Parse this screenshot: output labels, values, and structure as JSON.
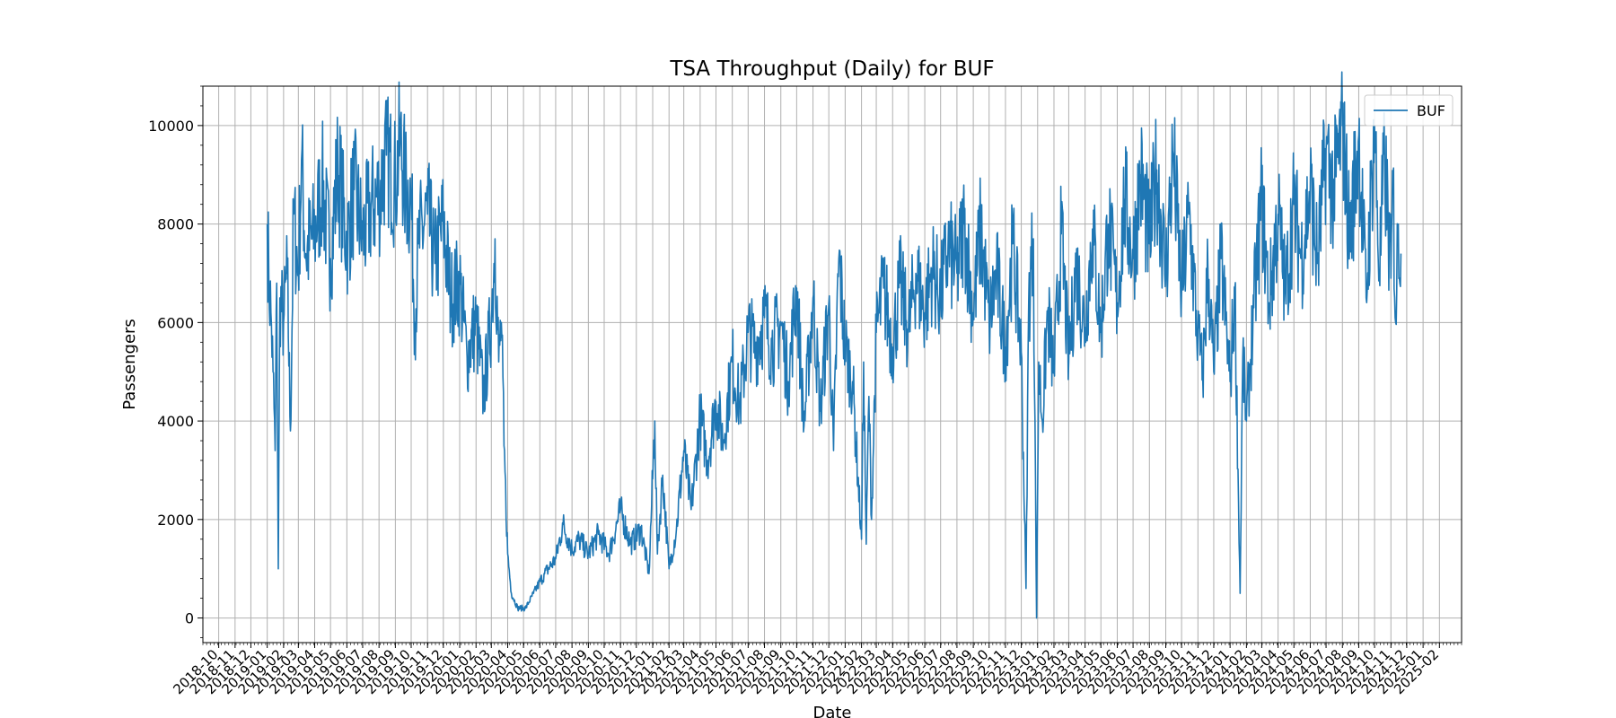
{
  "chart_data": {
    "type": "line",
    "title": "TSA Throughput (Daily) for BUF",
    "xlabel": "Date",
    "ylabel": "Passengers",
    "xlim": [
      "2018-09-01",
      "2025-03-15"
    ],
    "ylim": [
      -500,
      10800
    ],
    "yticks": [
      0,
      2000,
      4000,
      6000,
      8000,
      10000
    ],
    "xticks": [
      "2018-10",
      "2018-11",
      "2018-12",
      "2019-01",
      "2019-02",
      "2019-03",
      "2019-04",
      "2019-05",
      "2019-06",
      "2019-07",
      "2019-08",
      "2019-09",
      "2019-10",
      "2019-11",
      "2019-12",
      "2020-01",
      "2020-02",
      "2020-03",
      "2020-04",
      "2020-05",
      "2020-06",
      "2020-07",
      "2020-08",
      "2020-09",
      "2020-10",
      "2020-11",
      "2020-12",
      "2021-01",
      "2021-02",
      "2021-03",
      "2021-04",
      "2021-05",
      "2021-06",
      "2021-07",
      "2021-08",
      "2021-09",
      "2021-10",
      "2021-11",
      "2021-12",
      "2022-01",
      "2022-02",
      "2022-03",
      "2022-04",
      "2022-05",
      "2022-06",
      "2022-07",
      "2022-08",
      "2022-09",
      "2022-10",
      "2022-11",
      "2022-12",
      "2023-01",
      "2023-02",
      "2023-03",
      "2023-04",
      "2023-05",
      "2023-06",
      "2023-07",
      "2023-08",
      "2023-09",
      "2023-10",
      "2023-11",
      "2023-12",
      "2024-01",
      "2024-02",
      "2024-03",
      "2024-04",
      "2024-05",
      "2024-06",
      "2024-07",
      "2024-08",
      "2024-09",
      "2024-10",
      "2024-11",
      "2024-12",
      "2025-01",
      "2025-02"
    ],
    "grid": true,
    "legend_position": "top-right",
    "series": [
      {
        "name": "BUF",
        "color": "#1f77b4",
        "points": [
          [
            "2019-01-01",
            8000
          ],
          [
            "2019-01-04",
            6900
          ],
          [
            "2019-01-08",
            6200
          ],
          [
            "2019-01-12",
            5000
          ],
          [
            "2019-01-16",
            3400
          ],
          [
            "2019-01-19",
            6800
          ],
          [
            "2019-01-22",
            1000
          ],
          [
            "2019-01-25",
            6500
          ],
          [
            "2019-02-01",
            6000
          ],
          [
            "2019-02-08",
            7000
          ],
          [
            "2019-02-14",
            3800
          ],
          [
            "2019-02-20",
            8200
          ],
          [
            "2019-03-01",
            7000
          ],
          [
            "2019-03-07",
            9300
          ],
          [
            "2019-03-15",
            7400
          ],
          [
            "2019-04-01",
            7800
          ],
          [
            "2019-04-15",
            8800
          ],
          [
            "2019-05-01",
            7300
          ],
          [
            "2019-05-15",
            9200
          ],
          [
            "2019-06-01",
            7600
          ],
          [
            "2019-06-15",
            8700
          ],
          [
            "2019-07-01",
            7700
          ],
          [
            "2019-07-15",
            8300
          ],
          [
            "2019-08-01",
            8600
          ],
          [
            "2019-08-15",
            9400
          ],
          [
            "2019-09-01",
            8800
          ],
          [
            "2019-09-10",
            9700
          ],
          [
            "2019-09-20",
            8700
          ],
          [
            "2019-10-01",
            8500
          ],
          [
            "2019-10-08",
            6000
          ],
          [
            "2019-10-15",
            7600
          ],
          [
            "2019-11-01",
            8200
          ],
          [
            "2019-11-15",
            7200
          ],
          [
            "2019-12-01",
            8000
          ],
          [
            "2019-12-15",
            6500
          ],
          [
            "2020-01-01",
            6800
          ],
          [
            "2020-01-15",
            5300
          ],
          [
            "2020-02-01",
            6000
          ],
          [
            "2020-02-15",
            4500
          ],
          [
            "2020-03-01",
            6100
          ],
          [
            "2020-03-08",
            7700
          ],
          [
            "2020-03-15",
            5200
          ],
          [
            "2020-03-20",
            6000
          ],
          [
            "2020-03-25",
            3500
          ],
          [
            "2020-04-01",
            1300
          ],
          [
            "2020-04-08",
            500
          ],
          [
            "2020-04-20",
            200
          ],
          [
            "2020-05-05",
            200
          ],
          [
            "2020-05-20",
            500
          ],
          [
            "2020-06-10",
            900
          ],
          [
            "2020-07-01",
            1200
          ],
          [
            "2020-07-15",
            1900
          ],
          [
            "2020-08-01",
            1400
          ],
          [
            "2020-08-15",
            1600
          ],
          [
            "2020-09-01",
            1300
          ],
          [
            "2020-09-20",
            1700
          ],
          [
            "2020-10-10",
            1300
          ],
          [
            "2020-11-01",
            2200
          ],
          [
            "2020-11-20",
            1500
          ],
          [
            "2020-12-10",
            1800
          ],
          [
            "2020-12-25",
            900
          ],
          [
            "2021-01-05",
            4000
          ],
          [
            "2021-01-10",
            1300
          ],
          [
            "2021-01-20",
            2900
          ],
          [
            "2021-02-01",
            1000
          ],
          [
            "2021-02-15",
            1800
          ],
          [
            "2021-03-01",
            3400
          ],
          [
            "2021-03-15",
            2200
          ],
          [
            "2021-04-01",
            4100
          ],
          [
            "2021-04-15",
            3200
          ],
          [
            "2021-05-01",
            4400
          ],
          [
            "2021-05-15",
            3600
          ],
          [
            "2021-06-01",
            5200
          ],
          [
            "2021-06-15",
            4300
          ],
          [
            "2021-07-01",
            5800
          ],
          [
            "2021-07-15",
            5500
          ],
          [
            "2021-08-01",
            6100
          ],
          [
            "2021-08-15",
            5500
          ],
          [
            "2021-09-01",
            6000
          ],
          [
            "2021-09-15",
            4800
          ],
          [
            "2021-10-01",
            6700
          ],
          [
            "2021-10-15",
            3900
          ],
          [
            "2021-11-01",
            6500
          ],
          [
            "2021-11-15",
            4200
          ],
          [
            "2021-12-01",
            6400
          ],
          [
            "2021-12-10",
            3400
          ],
          [
            "2021-12-20",
            7300
          ],
          [
            "2022-01-01",
            5500
          ],
          [
            "2022-01-15",
            4800
          ],
          [
            "2022-02-01",
            1600
          ],
          [
            "2022-02-05",
            5200
          ],
          [
            "2022-02-10",
            1500
          ],
          [
            "2022-02-15",
            4500
          ],
          [
            "2022-02-20",
            2000
          ],
          [
            "2022-03-01",
            5800
          ],
          [
            "2022-03-15",
            6700
          ],
          [
            "2022-04-01",
            5500
          ],
          [
            "2022-04-15",
            6800
          ],
          [
            "2022-05-01",
            5800
          ],
          [
            "2022-05-15",
            7000
          ],
          [
            "2022-06-01",
            6200
          ],
          [
            "2022-06-15",
            7100
          ],
          [
            "2022-07-01",
            6500
          ],
          [
            "2022-07-15",
            7500
          ],
          [
            "2022-08-01",
            7000
          ],
          [
            "2022-08-15",
            8000
          ],
          [
            "2022-09-01",
            6200
          ],
          [
            "2022-09-15",
            7900
          ],
          [
            "2022-10-01",
            6000
          ],
          [
            "2022-10-15",
            7000
          ],
          [
            "2022-11-01",
            5500
          ],
          [
            "2022-11-15",
            7600
          ],
          [
            "2022-12-01",
            5400
          ],
          [
            "2022-12-10",
            600
          ],
          [
            "2022-12-15",
            6400
          ],
          [
            "2022-12-24",
            7700
          ],
          [
            "2022-12-30",
            0
          ],
          [
            "2023-01-03",
            5200
          ],
          [
            "2023-01-10",
            4000
          ],
          [
            "2023-01-20",
            6200
          ],
          [
            "2023-02-01",
            5000
          ],
          [
            "2023-02-15",
            7800
          ],
          [
            "2023-03-01",
            5200
          ],
          [
            "2023-03-15",
            7100
          ],
          [
            "2023-04-01",
            5900
          ],
          [
            "2023-04-15",
            7900
          ],
          [
            "2023-05-01",
            5800
          ],
          [
            "2023-05-15",
            8000
          ],
          [
            "2023-06-01",
            6400
          ],
          [
            "2023-06-15",
            8500
          ],
          [
            "2023-07-01",
            7300
          ],
          [
            "2023-07-15",
            9000
          ],
          [
            "2023-08-01",
            7600
          ],
          [
            "2023-08-15",
            9100
          ],
          [
            "2023-09-01",
            7000
          ],
          [
            "2023-09-15",
            9400
          ],
          [
            "2023-10-01",
            6600
          ],
          [
            "2023-10-15",
            8200
          ],
          [
            "2023-11-01",
            5700
          ],
          [
            "2023-11-10",
            4900
          ],
          [
            "2023-11-20",
            7100
          ],
          [
            "2023-12-01",
            5000
          ],
          [
            "2023-12-15",
            7300
          ],
          [
            "2024-01-01",
            4800
          ],
          [
            "2024-01-10",
            6700
          ],
          [
            "2024-01-20",
            500
          ],
          [
            "2024-01-25",
            5300
          ],
          [
            "2024-02-01",
            4000
          ],
          [
            "2024-02-15",
            6300
          ],
          [
            "2024-03-01",
            8500
          ],
          [
            "2024-03-15",
            6400
          ],
          [
            "2024-04-01",
            8200
          ],
          [
            "2024-04-15",
            6600
          ],
          [
            "2024-05-01",
            8400
          ],
          [
            "2024-05-15",
            7300
          ],
          [
            "2024-06-01",
            8700
          ],
          [
            "2024-06-15",
            7200
          ],
          [
            "2024-07-01",
            9500
          ],
          [
            "2024-07-15",
            8600
          ],
          [
            "2024-08-01",
            10000
          ],
          [
            "2024-08-15",
            7700
          ],
          [
            "2024-09-01",
            9800
          ],
          [
            "2024-09-15",
            6500
          ],
          [
            "2024-10-01",
            10000
          ],
          [
            "2024-10-10",
            7000
          ],
          [
            "2024-10-20",
            9300
          ],
          [
            "2024-11-01",
            6900
          ],
          [
            "2024-11-05",
            8900
          ],
          [
            "2024-11-10",
            6000
          ],
          [
            "2024-11-15",
            8000
          ],
          [
            "2024-11-20",
            7400
          ]
        ]
      }
    ]
  }
}
